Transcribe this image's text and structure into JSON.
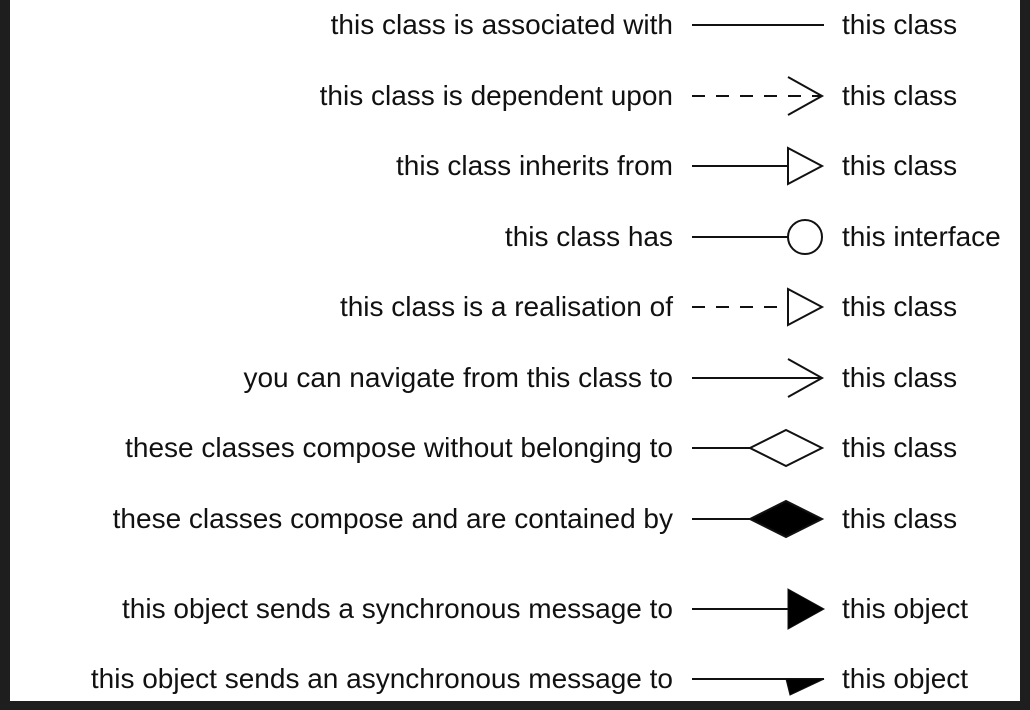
{
  "rows": [
    {
      "left": "this class is associated with",
      "right": "this class",
      "connector": "association-line"
    },
    {
      "left": "this class is dependent upon",
      "right": "this class",
      "connector": "dependency-arrow"
    },
    {
      "left": "this class inherits from",
      "right": "this class",
      "connector": "inheritance-arrow"
    },
    {
      "left": "this class has",
      "right": "this interface",
      "connector": "interface-lollipop"
    },
    {
      "left": "this class is a realisation of",
      "right": "this class",
      "connector": "realisation-arrow"
    },
    {
      "left": "you can navigate from this class to",
      "right": "this class",
      "connector": "navigation-arrow"
    },
    {
      "left": "these classes compose without belonging to",
      "right": "this class",
      "connector": "aggregation-diamond"
    },
    {
      "left": "these classes compose and are contained by",
      "right": "this class",
      "connector": "composition-diamond"
    },
    {
      "left": "this object sends a synchronous message to",
      "right": "this object",
      "connector": "synchronous-message-arrow"
    },
    {
      "left": "this object sends an asynchronous message to",
      "right": "this object",
      "connector": "asynchronous-message-arrow"
    }
  ]
}
